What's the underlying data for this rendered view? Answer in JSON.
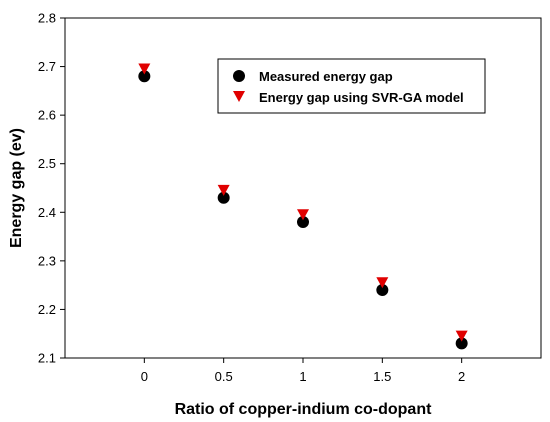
{
  "chart_data": {
    "type": "scatter",
    "xlabel": "Ratio of copper-indium co-dopant",
    "ylabel": "Energy gap (ev)",
    "xlim": [
      -0.5,
      2.5
    ],
    "ylim": [
      2.1,
      2.8
    ],
    "xticks": [
      "0",
      "0.5",
      "1",
      "1.5",
      "2"
    ],
    "yticks": [
      "2.1",
      "2.2",
      "2.3",
      "2.4",
      "2.5",
      "2.6",
      "2.7",
      "2.8"
    ],
    "legend_position": "top-right",
    "grid": false,
    "series": [
      {
        "name": "Measured energy gap",
        "marker": "circle",
        "color": "#000000",
        "x": [
          0,
          0.5,
          1,
          1.5,
          2
        ],
        "y": [
          2.68,
          2.43,
          2.38,
          2.24,
          2.13
        ]
      },
      {
        "name": "Energy gap using SVR-GA model",
        "marker": "triangle-down",
        "color": "#e00000",
        "x": [
          0,
          0.5,
          1,
          1.5,
          2
        ],
        "y": [
          2.695,
          2.445,
          2.395,
          2.255,
          2.145
        ]
      }
    ]
  }
}
